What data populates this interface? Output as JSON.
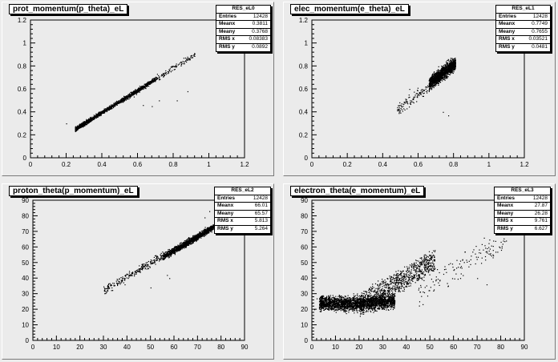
{
  "chart_data": [
    {
      "type": "scatter",
      "title": "prot_momentum(p_theta)_eL",
      "stats": {
        "name": "RES_eL0",
        "rows": [
          {
            "k": "Entries",
            "v": "12428"
          },
          {
            "k": "Meanx",
            "v": "0.3811"
          },
          {
            "k": "Meany",
            "v": "0.3768"
          },
          {
            "k": "RMS x",
            "v": "0.08383"
          },
          {
            "k": "RMS y",
            "v": "0.0892"
          }
        ]
      },
      "xlim": [
        0,
        1.2
      ],
      "ylim": [
        0,
        1.2
      ],
      "xticks": [
        "0",
        "0.2",
        "0.4",
        "0.6",
        "0.8",
        "1",
        "1.2"
      ],
      "yticks": [
        "0",
        "0.2",
        "0.4",
        "0.6",
        "0.8",
        "1",
        "1.2"
      ],
      "points_description": "narrow diagonal band y≈x from (0.25,0.23) to (0.9,0.9), densest at x≈0.3–0.5"
    },
    {
      "type": "scatter",
      "title": "elec_momentum(e_theta)_eL",
      "stats": {
        "name": "RES_eL1",
        "rows": [
          {
            "k": "Entries",
            "v": "12428"
          },
          {
            "k": "Meanx",
            "v": "0.7749"
          },
          {
            "k": "Meany",
            "v": "0.7655"
          },
          {
            "k": "RMS x",
            "v": "0.03521"
          },
          {
            "k": "RMS y",
            "v": "0.0481"
          }
        ]
      },
      "xlim": [
        0,
        1.2
      ],
      "ylim": [
        0,
        1.2
      ],
      "xticks": [
        "0",
        "0.2",
        "0.4",
        "0.6",
        "0.8",
        "1",
        "1.2"
      ],
      "yticks": [
        "0",
        "0.2",
        "0.4",
        "0.6",
        "0.8",
        "1",
        "1.2"
      ],
      "points_description": "cluster at x≈0.65–0.81, y≈0.65–0.87 with sparse tail toward (0.5,0.45)"
    },
    {
      "type": "scatter",
      "title": "proton_theta(p_momentum)_eL",
      "stats": {
        "name": "RES_eL2",
        "rows": [
          {
            "k": "Entries",
            "v": "12428"
          },
          {
            "k": "Meanx",
            "v": "66.01"
          },
          {
            "k": "Meany",
            "v": "65.57"
          },
          {
            "k": "RMS x",
            "v": "5.813"
          },
          {
            "k": "RMS y",
            "v": "5.264"
          }
        ]
      },
      "xlim": [
        0,
        90
      ],
      "ylim": [
        0,
        90
      ],
      "xticks": [
        "0",
        "10",
        "20",
        "30",
        "40",
        "50",
        "60",
        "70",
        "80",
        "90"
      ],
      "yticks": [
        "0",
        "10",
        "20",
        "30",
        "40",
        "50",
        "60",
        "70",
        "80",
        "90"
      ],
      "points_description": "diagonal band from (30,33) to (80,75), densest at x≈55–78"
    },
    {
      "type": "scatter",
      "title": "electron_theta(e_momentum)_eL",
      "stats": {
        "name": "RES_eL3",
        "rows": [
          {
            "k": "Entries",
            "v": "12428"
          },
          {
            "k": "Meanx",
            "v": "27.87"
          },
          {
            "k": "Meany",
            "v": "26.28"
          },
          {
            "k": "RMS x",
            "v": "9.761"
          },
          {
            "k": "RMS y",
            "v": "6.627"
          }
        ]
      },
      "xlim": [
        0,
        90
      ],
      "ylim": [
        0,
        90
      ],
      "xticks": [
        "0",
        "10",
        "20",
        "30",
        "40",
        "50",
        "60",
        "70",
        "80",
        "90"
      ],
      "yticks": [
        "0",
        "10",
        "20",
        "30",
        "40",
        "50",
        "60",
        "70",
        "80",
        "90"
      ],
      "points_description": "dense region x≈5–35, y≈17–32, rising band to (55,45), sparse tail to (85,75)"
    }
  ]
}
